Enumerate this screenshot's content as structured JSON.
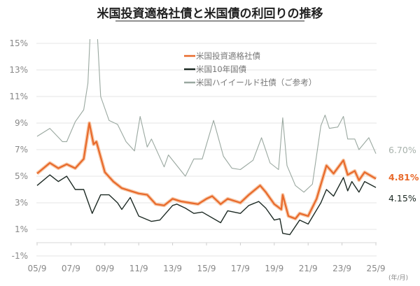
{
  "chart_data": {
    "type": "line",
    "title": "米国投資適格社債と米国債の利回りの推移",
    "xlabel": "(年/月)",
    "ylabel": "",
    "ylim": [
      -1,
      15
    ],
    "xlim": [
      "2005-09",
      "2025-09"
    ],
    "y_ticks": [
      "-1%",
      "1%",
      "3%",
      "5%",
      "7%",
      "9%",
      "11%",
      "13%",
      "15%"
    ],
    "y_tick_values": [
      -1,
      1,
      3,
      5,
      7,
      9,
      11,
      13,
      15
    ],
    "x_ticks": [
      "05/9",
      "07/9",
      "09/9",
      "11/9",
      "13/9",
      "15/9",
      "17/9",
      "19/9",
      "21/9",
      "23/9",
      "25/9"
    ],
    "grid": true,
    "legend_position": "top-center",
    "series": [
      {
        "name": "米国投資適格社債",
        "color": "#e8692a",
        "end_label": "4.81%",
        "points": [
          [
            "2005-09",
            5.2
          ],
          [
            "2006-06",
            6.0
          ],
          [
            "2006-12",
            5.6
          ],
          [
            "2007-06",
            5.9
          ],
          [
            "2007-12",
            5.6
          ],
          [
            "2008-06",
            6.3
          ],
          [
            "2008-10",
            9.0
          ],
          [
            "2009-01",
            7.4
          ],
          [
            "2009-03",
            7.6
          ],
          [
            "2009-09",
            5.3
          ],
          [
            "2010-03",
            4.6
          ],
          [
            "2010-09",
            4.1
          ],
          [
            "2011-03",
            3.9
          ],
          [
            "2011-09",
            3.7
          ],
          [
            "2012-03",
            3.6
          ],
          [
            "2012-09",
            2.9
          ],
          [
            "2013-03",
            2.8
          ],
          [
            "2013-09",
            3.3
          ],
          [
            "2014-03",
            3.1
          ],
          [
            "2014-09",
            3.0
          ],
          [
            "2015-03",
            2.9
          ],
          [
            "2015-09",
            3.3
          ],
          [
            "2016-01",
            3.5
          ],
          [
            "2016-07",
            2.9
          ],
          [
            "2016-12",
            3.3
          ],
          [
            "2017-09",
            3.0
          ],
          [
            "2018-03",
            3.6
          ],
          [
            "2018-11",
            4.3
          ],
          [
            "2019-03",
            3.8
          ],
          [
            "2019-09",
            2.9
          ],
          [
            "2020-02",
            2.5
          ],
          [
            "2020-03",
            3.6
          ],
          [
            "2020-07",
            2.0
          ],
          [
            "2020-12",
            1.8
          ],
          [
            "2021-03",
            2.2
          ],
          [
            "2021-09",
            2.0
          ],
          [
            "2022-03",
            3.3
          ],
          [
            "2022-10",
            5.8
          ],
          [
            "2023-03",
            5.2
          ],
          [
            "2023-10",
            6.2
          ],
          [
            "2024-01",
            5.1
          ],
          [
            "2024-06",
            5.4
          ],
          [
            "2024-09",
            4.7
          ],
          [
            "2025-01",
            5.3
          ],
          [
            "2025-09",
            4.81
          ]
        ]
      },
      {
        "name": "米国10年国債",
        "color": "#1d2a24",
        "end_label": "4.15%",
        "points": [
          [
            "2005-09",
            4.3
          ],
          [
            "2006-06",
            5.1
          ],
          [
            "2006-12",
            4.6
          ],
          [
            "2007-06",
            5.0
          ],
          [
            "2007-12",
            4.0
          ],
          [
            "2008-06",
            4.0
          ],
          [
            "2008-12",
            2.2
          ],
          [
            "2009-06",
            3.6
          ],
          [
            "2009-12",
            3.6
          ],
          [
            "2010-06",
            3.0
          ],
          [
            "2010-09",
            2.5
          ],
          [
            "2011-03",
            3.4
          ],
          [
            "2011-09",
            2.0
          ],
          [
            "2012-06",
            1.6
          ],
          [
            "2012-12",
            1.7
          ],
          [
            "2013-09",
            2.8
          ],
          [
            "2013-12",
            2.9
          ],
          [
            "2014-06",
            2.6
          ],
          [
            "2014-12",
            2.2
          ],
          [
            "2015-06",
            2.3
          ],
          [
            "2016-07",
            1.5
          ],
          [
            "2016-12",
            2.4
          ],
          [
            "2017-09",
            2.2
          ],
          [
            "2018-03",
            2.8
          ],
          [
            "2018-10",
            3.1
          ],
          [
            "2019-03",
            2.6
          ],
          [
            "2019-09",
            1.7
          ],
          [
            "2020-01",
            1.8
          ],
          [
            "2020-03",
            0.7
          ],
          [
            "2020-08",
            0.6
          ],
          [
            "2021-03",
            1.7
          ],
          [
            "2021-09",
            1.4
          ],
          [
            "2022-06",
            3.0
          ],
          [
            "2022-10",
            4.0
          ],
          [
            "2023-03",
            3.5
          ],
          [
            "2023-10",
            4.9
          ],
          [
            "2024-01",
            3.9
          ],
          [
            "2024-04",
            4.6
          ],
          [
            "2024-09",
            3.8
          ],
          [
            "2025-01",
            4.6
          ],
          [
            "2025-09",
            4.15
          ]
        ]
      },
      {
        "name": "米国ハイイールド社債（ご参考）",
        "color": "#9aa8a0",
        "end_label": "6.70%",
        "points": [
          [
            "2005-09",
            8.0
          ],
          [
            "2006-06",
            8.6
          ],
          [
            "2007-03",
            7.6
          ],
          [
            "2007-06",
            7.6
          ],
          [
            "2007-12",
            9.1
          ],
          [
            "2008-06",
            10.0
          ],
          [
            "2008-09",
            12.0
          ],
          [
            "2008-12",
            19.0
          ],
          [
            "2009-03",
            17.0
          ],
          [
            "2009-06",
            11.0
          ],
          [
            "2009-12",
            9.2
          ],
          [
            "2010-06",
            8.9
          ],
          [
            "2010-12",
            7.6
          ],
          [
            "2011-06",
            6.9
          ],
          [
            "2011-10",
            9.5
          ],
          [
            "2012-03",
            7.2
          ],
          [
            "2012-06",
            7.8
          ],
          [
            "2013-03",
            5.7
          ],
          [
            "2013-06",
            6.6
          ],
          [
            "2014-06",
            5.0
          ],
          [
            "2014-12",
            6.3
          ],
          [
            "2015-06",
            6.3
          ],
          [
            "2016-02",
            9.2
          ],
          [
            "2016-09",
            6.5
          ],
          [
            "2017-03",
            5.6
          ],
          [
            "2017-09",
            5.5
          ],
          [
            "2018-06",
            6.2
          ],
          [
            "2018-12",
            7.9
          ],
          [
            "2019-06",
            6.0
          ],
          [
            "2019-12",
            5.5
          ],
          [
            "2020-03",
            9.4
          ],
          [
            "2020-06",
            5.8
          ],
          [
            "2020-12",
            4.3
          ],
          [
            "2021-06",
            3.8
          ],
          [
            "2021-12",
            4.4
          ],
          [
            "2022-06",
            8.8
          ],
          [
            "2022-09",
            9.6
          ],
          [
            "2022-12",
            8.6
          ],
          [
            "2023-06",
            8.7
          ],
          [
            "2023-10",
            9.5
          ],
          [
            "2024-01",
            7.8
          ],
          [
            "2024-06",
            7.8
          ],
          [
            "2024-09",
            7.0
          ],
          [
            "2025-04",
            7.9
          ],
          [
            "2025-09",
            6.7
          ]
        ]
      }
    ]
  }
}
